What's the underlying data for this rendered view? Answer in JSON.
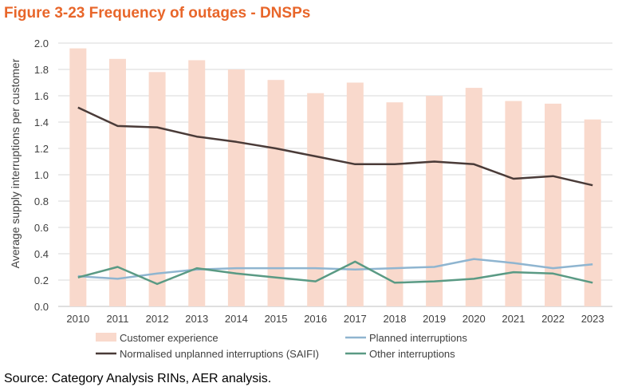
{
  "figure_title": "Figure 3-23 Frequency of outages - DNSPs",
  "source": "Source: Category Analysis RINs, AER analysis.",
  "colors": {
    "title": "#e8662a",
    "bars": "#f9d9cc",
    "saifi": "#4a3b38",
    "planned": "#8fb5d0",
    "other": "#5a9a84",
    "gridline": "#d9d9d9",
    "axis_text": "#404040"
  },
  "chart_data": {
    "type": "bar+line",
    "title": "Figure 3-23 Frequency of outages - DNSPs",
    "xlabel": "",
    "ylabel": "Average supply interruptions per customer",
    "ylim": [
      0,
      2.0
    ],
    "ytick_labels": [
      "0.0",
      "0.2",
      "0.4",
      "0.6",
      "0.8",
      "1.0",
      "1.2",
      "1.4",
      "1.6",
      "1.8",
      "2.0"
    ],
    "ytick_values": [
      0,
      0.2,
      0.4,
      0.6,
      0.8,
      1.0,
      1.2,
      1.4,
      1.6,
      1.8,
      2.0
    ],
    "grid": true,
    "categories": [
      "2010",
      "2011",
      "2012",
      "2013",
      "2014",
      "2015",
      "2016",
      "2017",
      "2018",
      "2019",
      "2020",
      "2021",
      "2022",
      "2023"
    ],
    "series": [
      {
        "name": "Customer experience",
        "kind": "bar",
        "color": "#f9d9cc",
        "values": [
          1.96,
          1.88,
          1.78,
          1.87,
          1.8,
          1.72,
          1.62,
          1.7,
          1.55,
          1.6,
          1.66,
          1.56,
          1.54,
          1.42
        ]
      },
      {
        "name": "Planned interruptions",
        "kind": "line",
        "color": "#8fb5d0",
        "values": [
          0.23,
          0.21,
          0.25,
          0.28,
          0.29,
          0.29,
          0.29,
          0.28,
          0.29,
          0.3,
          0.36,
          0.33,
          0.29,
          0.32
        ]
      },
      {
        "name": "Normalised unplanned interruptions (SAIFI)",
        "kind": "line",
        "color": "#4a3b38",
        "values": [
          1.51,
          1.37,
          1.36,
          1.29,
          1.25,
          1.2,
          1.14,
          1.08,
          1.08,
          1.1,
          1.08,
          0.97,
          0.99,
          0.92
        ]
      },
      {
        "name": "Other interruptions",
        "kind": "line",
        "color": "#5a9a84",
        "values": [
          0.22,
          0.3,
          0.17,
          0.29,
          0.25,
          0.22,
          0.19,
          0.34,
          0.18,
          0.19,
          0.21,
          0.26,
          0.25,
          0.18
        ]
      }
    ],
    "legend_placement": "bottom",
    "legend": [
      "Customer experience",
      "Planned interruptions",
      "Normalised unplanned interruptions (SAIFI)",
      "Other interruptions"
    ]
  }
}
